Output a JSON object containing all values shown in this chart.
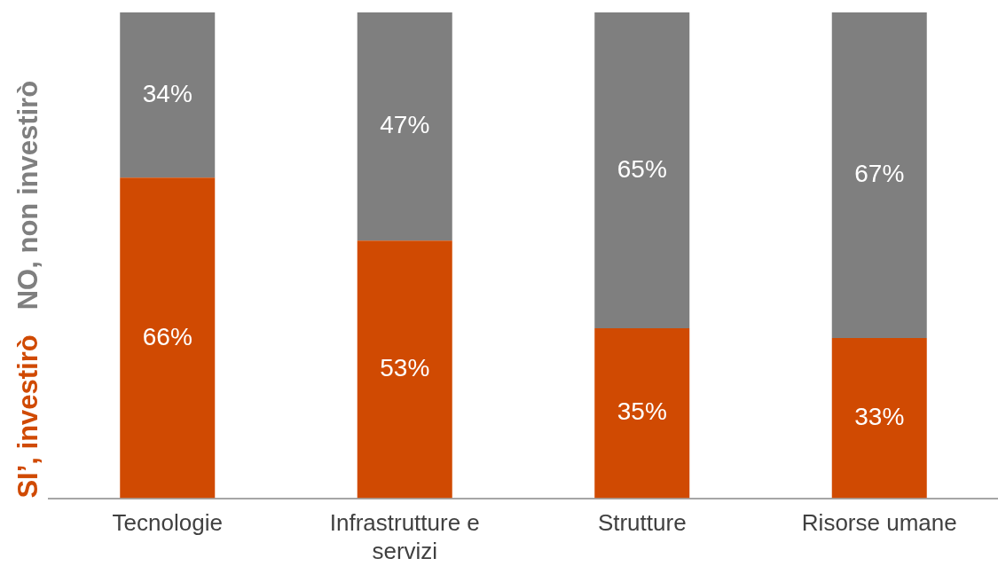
{
  "chart_data": {
    "type": "bar",
    "stacked": true,
    "categories": [
      "Tecnologie",
      "Infrastrutture e servizi",
      "Strutture",
      "Risorse umane"
    ],
    "series": [
      {
        "name": "SI’, investirò",
        "color": "#d04a02",
        "values": [
          66,
          53,
          35,
          33
        ],
        "value_labels": [
          "66%",
          "53%",
          "35%",
          "33%"
        ]
      },
      {
        "name": "NO, non investirò",
        "color": "#7f7f7f",
        "values": [
          34,
          47,
          65,
          67
        ],
        "value_labels": [
          "34%",
          "47%",
          "65%",
          "67%"
        ]
      }
    ],
    "tick_labels": "x",
    "legend": "left"
  }
}
